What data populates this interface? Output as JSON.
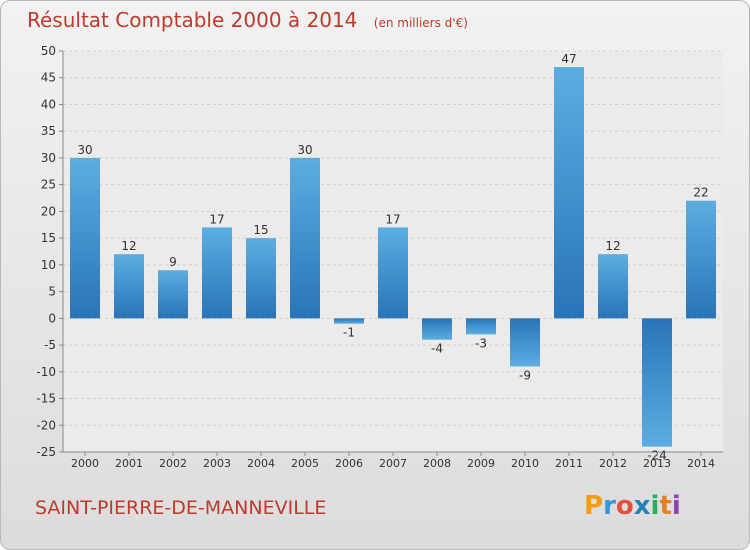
{
  "chart_data": {
    "type": "bar",
    "title": "Résultat Comptable 2000 à 2014",
    "subtitle": "(en milliers d'€)",
    "categories": [
      "2000",
      "2001",
      "2002",
      "2003",
      "2004",
      "2005",
      "2006",
      "2007",
      "2008",
      "2009",
      "2010",
      "2011",
      "2012",
      "2013",
      "2014"
    ],
    "values": [
      30,
      12,
      9,
      17,
      15,
      30,
      -1,
      17,
      -4,
      -3,
      -9,
      47,
      12,
      -24,
      22
    ],
    "data_labels": [
      "30",
      "12",
      "9",
      "17",
      "15",
      "30",
      "-1",
      "17",
      "-4",
      "-3",
      "-9",
      "47",
      "12",
      "-24",
      "22"
    ],
    "y_ticks": [
      "50",
      "45",
      "40",
      "35",
      "30",
      "25",
      "20",
      "15",
      "10",
      "5",
      "0",
      "-5",
      "-10",
      "-15",
      "-20",
      "-25"
    ],
    "ylim": [
      -25,
      50
    ],
    "grid": true,
    "xlabel": "",
    "ylabel": "",
    "bar_color_light": "#5dade2",
    "bar_color_dark": "#2874b8"
  },
  "footer": {
    "commune": "SAINT-PIERRE-DE-MANNEVILLE",
    "logo_text": "Proxiti"
  },
  "colors": {
    "title": "#c0392b",
    "grid": "#cfcfcf"
  }
}
